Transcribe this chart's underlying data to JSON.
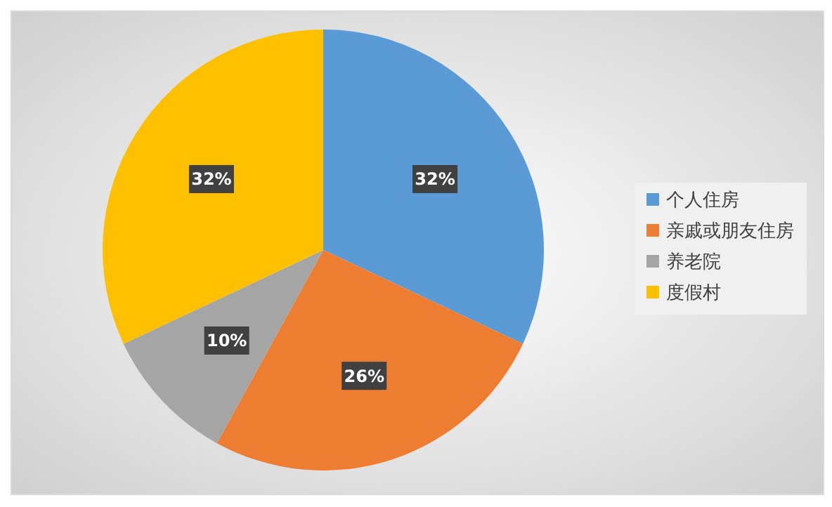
{
  "chart_data": {
    "type": "pie",
    "categories": [
      "个人住房",
      "亲戚或朋友住房",
      "养老院",
      "度假村"
    ],
    "values": [
      32,
      26,
      10,
      32
    ],
    "colors": [
      "#5b9bd5",
      "#ed7d31",
      "#a5a5a5",
      "#ffc000"
    ],
    "value_labels": [
      "32%",
      "26%",
      "10%",
      "32%"
    ],
    "legend": "right"
  }
}
